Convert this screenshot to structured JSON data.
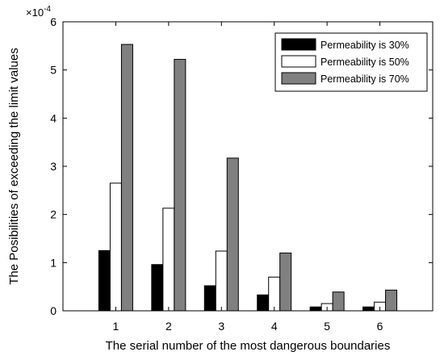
{
  "chart_data": {
    "type": "bar",
    "title": "",
    "xlabel": "The serial number of the most dangerous boundaries",
    "ylabel": "The Posibilities of exceeding the limit values",
    "exponent_label": "×10",
    "exponent_power": "-4",
    "categories": [
      "1",
      "2",
      "3",
      "4",
      "5",
      "6"
    ],
    "ylim": [
      0,
      6
    ],
    "yticks": [
      "0",
      "1",
      "2",
      "3",
      "4",
      "5",
      "6"
    ],
    "grid": false,
    "legend_position": "top-right",
    "series": [
      {
        "name": "Permeability is 30%",
        "color": "#000000",
        "values": [
          1.25,
          0.96,
          0.52,
          0.33,
          0.08,
          0.08
        ]
      },
      {
        "name": "Permeability is 50%",
        "color": "#ffffff",
        "values": [
          2.65,
          2.13,
          1.24,
          0.7,
          0.15,
          0.18
        ]
      },
      {
        "name": "Permeability is 70%",
        "color": "#808080",
        "values": [
          5.53,
          5.22,
          3.17,
          1.2,
          0.39,
          0.43
        ]
      }
    ]
  }
}
